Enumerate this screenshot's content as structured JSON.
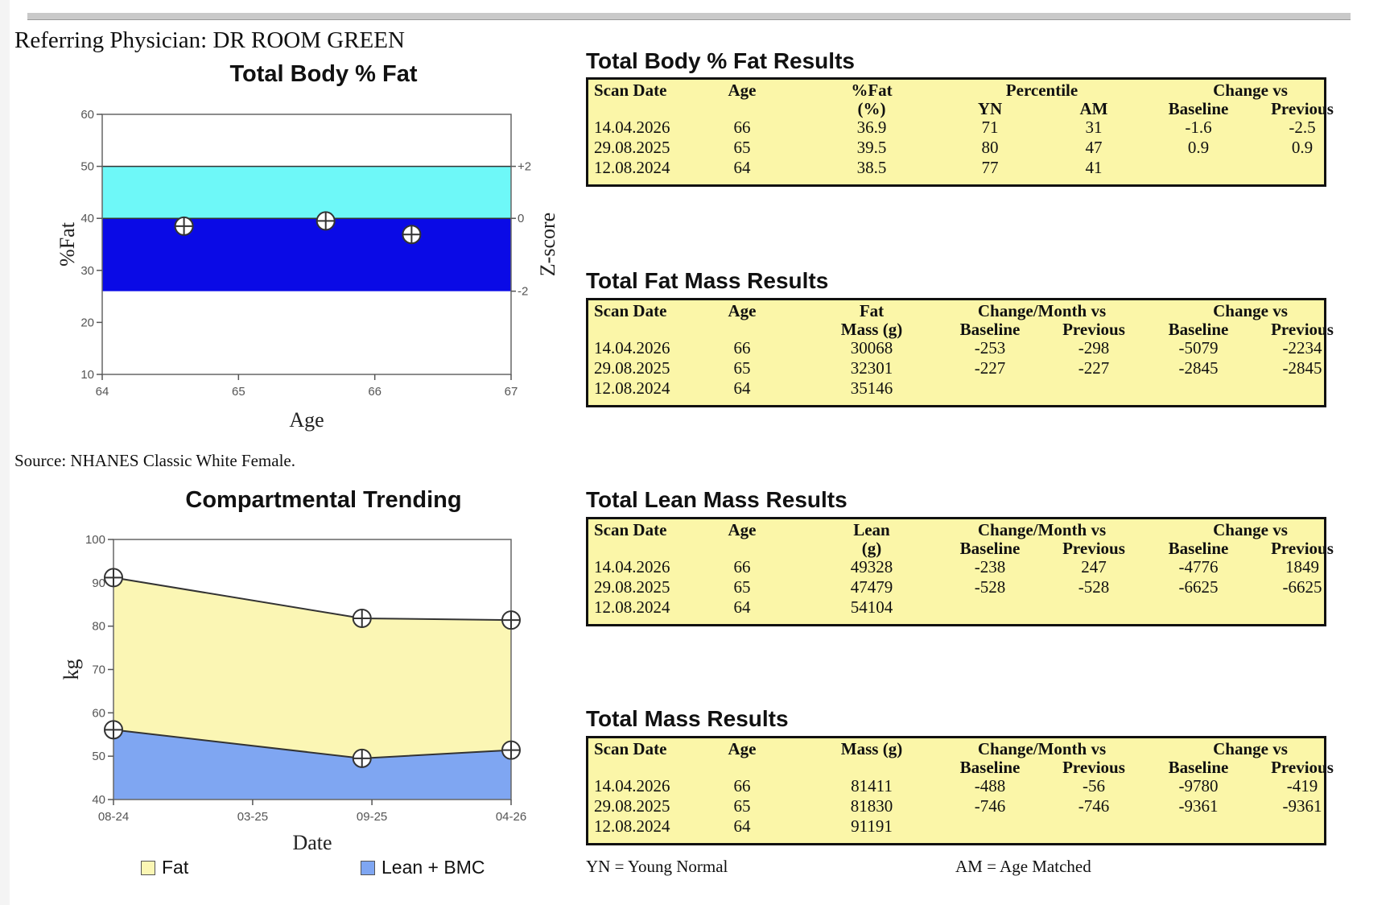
{
  "header": {
    "physician_label": "Referring Physician:",
    "physician_name": "DR ROOM GREEN"
  },
  "fat_chart": {
    "title": "Total Body % Fat",
    "source": "Source: NHANES Classic White Female.",
    "chart_data": {
      "type": "scatter",
      "title": "Total Body % Fat",
      "xlabel": "Age",
      "ylabel": "%Fat",
      "y2label": "Z-score",
      "xlim": [
        64,
        67
      ],
      "ylim": [
        10,
        60
      ],
      "x_ticks": [
        "64",
        "65",
        "66",
        "67"
      ],
      "y_ticks": [
        "10",
        "20",
        "30",
        "40",
        "50",
        "60"
      ],
      "zscore_ticks": [
        {
          "label": "+2",
          "value": 50
        },
        {
          "label": "0",
          "value": 40
        },
        {
          "label": "-2",
          "value": 26
        }
      ],
      "bands": [
        {
          "from": 40,
          "to": 50,
          "color": "#6ef8f8"
        },
        {
          "from": 26,
          "to": 40,
          "color": "#0a0ae6"
        }
      ],
      "points": [
        {
          "x": 64.6,
          "y": 38.5
        },
        {
          "x": 65.64,
          "y": 39.5
        },
        {
          "x": 66.27,
          "y": 36.9
        }
      ]
    }
  },
  "trend_chart": {
    "title": "Compartmental Trending",
    "chart_data": {
      "type": "area",
      "title": "Compartmental Trending",
      "xlabel": "Date",
      "ylabel": "kg",
      "ylim": [
        40,
        100
      ],
      "y_ticks": [
        "40",
        "50",
        "60",
        "70",
        "80",
        "90",
        "100"
      ],
      "x_ticks": [
        {
          "label": "08-24",
          "month": 0
        },
        {
          "label": "03-25",
          "month": 7
        },
        {
          "label": "09-25",
          "month": 13
        },
        {
          "label": "04-26",
          "month": 20
        }
      ],
      "x_range_months": [
        0,
        20
      ],
      "series": [
        {
          "name": "Fat",
          "color": "#fbf6b4",
          "points": [
            [
              0,
              91.2
            ],
            [
              12.5,
              81.8
            ],
            [
              20,
              81.4
            ]
          ]
        },
        {
          "name": "Lean + BMC",
          "color": "#7fa6f2",
          "points": [
            [
              0,
              56.1
            ],
            [
              12.5,
              49.5
            ],
            [
              20,
              51.4
            ]
          ]
        }
      ]
    }
  },
  "tables": [
    {
      "title": "Total Body % Fat Results",
      "headers": {
        "scan_date": "Scan Date",
        "age": "Age",
        "col3a": "%Fat",
        "col3b": "(%)",
        "grp1": "Percentile",
        "grp1a": "YN",
        "grp1b": "AM",
        "grp2": "Change vs",
        "grp2a": "Baseline",
        "grp2b": "Previous"
      },
      "rows": [
        [
          "14.04.2026",
          "66",
          "36.9",
          "71",
          "31",
          "-1.6",
          "-2.5"
        ],
        [
          "29.08.2025",
          "65",
          "39.5",
          "80",
          "47",
          "0.9",
          "0.9"
        ],
        [
          "12.08.2024",
          "64",
          "38.5",
          "77",
          "41",
          "",
          ""
        ]
      ]
    },
    {
      "title": "Total Fat Mass Results",
      "headers": {
        "scan_date": "Scan Date",
        "age": "Age",
        "col3a": "Fat",
        "col3b": "Mass (g)",
        "grp1": "Change/Month vs",
        "grp1a": "Baseline",
        "grp1b": "Previous",
        "grp2": "Change vs",
        "grp2a": "Baseline",
        "grp2b": "Previous"
      },
      "rows": [
        [
          "14.04.2026",
          "66",
          "30068",
          "-253",
          "-298",
          "-5079",
          "-2234"
        ],
        [
          "29.08.2025",
          "65",
          "32301",
          "-227",
          "-227",
          "-2845",
          "-2845"
        ],
        [
          "12.08.2024",
          "64",
          "35146",
          "",
          "",
          "",
          ""
        ]
      ]
    },
    {
      "title": "Total Lean Mass Results",
      "headers": {
        "scan_date": "Scan Date",
        "age": "Age",
        "col3a": "Lean",
        "col3b": "(g)",
        "grp1": "Change/Month vs",
        "grp1a": "Baseline",
        "grp1b": "Previous",
        "grp2": "Change vs",
        "grp2a": "Baseline",
        "grp2b": "Previous"
      },
      "rows": [
        [
          "14.04.2026",
          "66",
          "49328",
          "-238",
          "247",
          "-4776",
          "1849"
        ],
        [
          "29.08.2025",
          "65",
          "47479",
          "-528",
          "-528",
          "-6625",
          "-6625"
        ],
        [
          "12.08.2024",
          "64",
          "54104",
          "",
          "",
          "",
          ""
        ]
      ]
    },
    {
      "title": "Total Mass Results",
      "headers": {
        "scan_date": "Scan Date",
        "age": "Age",
        "col3a": "Mass (g)",
        "col3b": "",
        "grp1": "Change/Month vs",
        "grp1a": "Baseline",
        "grp1b": "Previous",
        "grp2": "Change vs",
        "grp2a": "Baseline",
        "grp2b": "Previous"
      },
      "rows": [
        [
          "14.04.2026",
          "66",
          "81411",
          "-488",
          "-56",
          "-9780",
          "-419"
        ],
        [
          "29.08.2025",
          "65",
          "81830",
          "-746",
          "-746",
          "-9361",
          "-9361"
        ],
        [
          "12.08.2024",
          "64",
          "91191",
          "",
          "",
          "",
          ""
        ]
      ]
    }
  ],
  "footnotes": {
    "yn": "YN = Young Normal",
    "am": "AM = Age Matched"
  }
}
